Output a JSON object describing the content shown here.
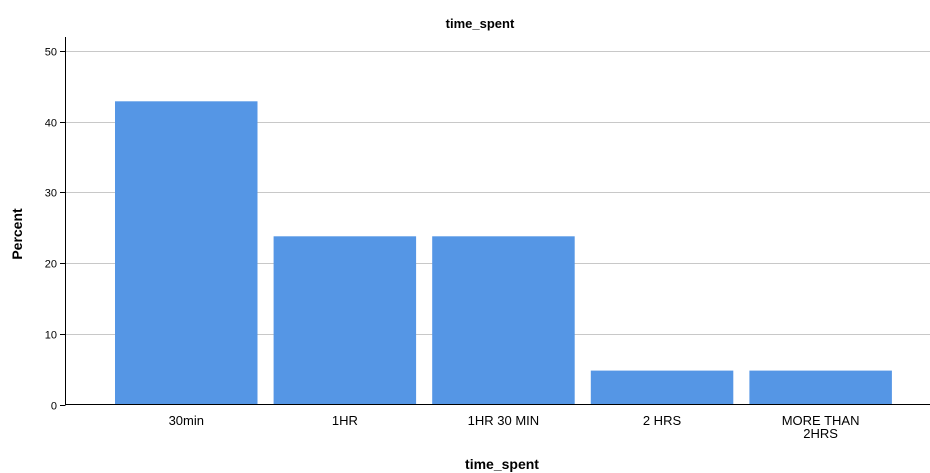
{
  "chart_data": {
    "type": "bar",
    "title": "time_spent",
    "xlabel": "time_spent",
    "ylabel": "Percent",
    "categories": [
      [
        "30min"
      ],
      [
        "1HR"
      ],
      [
        "1HR 30 MIN"
      ],
      [
        "2 HRS"
      ],
      [
        "MORE THAN",
        "2HRS"
      ]
    ],
    "values": [
      42.9,
      23.8,
      23.8,
      4.8,
      4.8
    ],
    "ylim": [
      0,
      52
    ],
    "yticks": [
      0,
      10,
      20,
      30,
      40,
      50
    ],
    "grid": true,
    "legend": "none",
    "colors": {
      "bar": "#5596e5",
      "grid": "#c8c8c8",
      "axis": "#000000"
    }
  }
}
